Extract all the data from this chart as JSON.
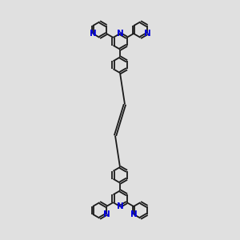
{
  "bg_color": "#e0e0e0",
  "bond_color": "#1a1a1a",
  "N_color": "#0000dd",
  "bond_lw": 1.3,
  "dbo": 0.045,
  "N_fontsize": 7.5,
  "N_fontweight": "bold",
  "figsize": [
    3.0,
    3.0
  ],
  "dpi": 100,
  "ring_r": 0.36,
  "xlim": [
    -0.5,
    10.5
  ],
  "ylim": [
    -0.2,
    10.2
  ]
}
